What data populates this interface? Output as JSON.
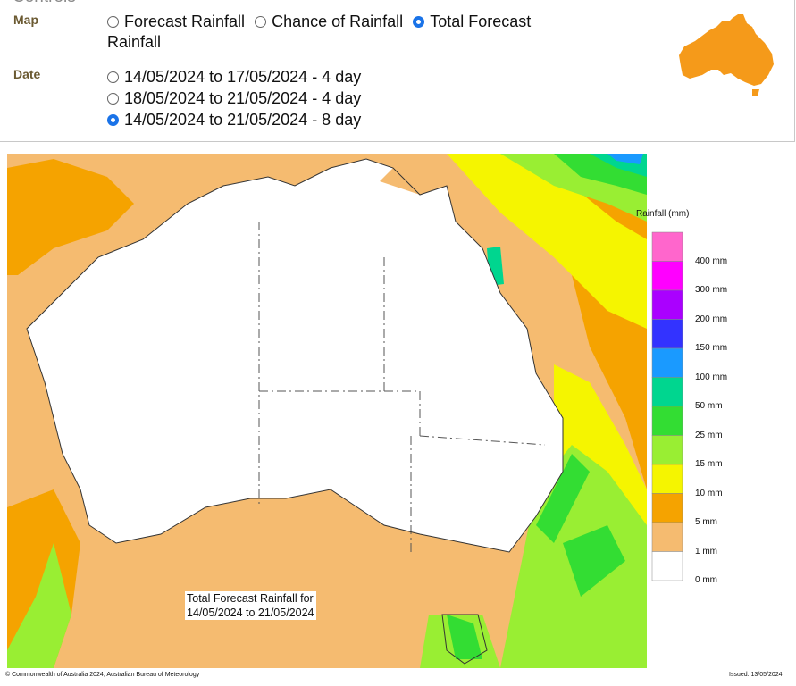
{
  "controls": {
    "heading": "Controls",
    "map_label": "Map",
    "map_options": [
      {
        "label": "Forecast Rainfall",
        "checked": false
      },
      {
        "label": "Chance of Rainfall",
        "checked": false
      },
      {
        "label": "Total Forecast",
        "checked": true
      }
    ],
    "map_option_wrap": "Rainfall",
    "date_label": "Date",
    "date_options": [
      {
        "label": "14/05/2024 to 17/05/2024 - 4 day",
        "checked": false
      },
      {
        "label": "18/05/2024 to 21/05/2024 - 4 day",
        "checked": false
      },
      {
        "label": "14/05/2024 to 21/05/2024 - 8 day",
        "checked": true
      }
    ]
  },
  "map": {
    "legend_title": "Rainfall (mm)",
    "legend": [
      {
        "label": "400 mm",
        "color": "#ff66cc"
      },
      {
        "label": "300 mm",
        "color": "#ff00ff"
      },
      {
        "label": "200 mm",
        "color": "#aa00ff"
      },
      {
        "label": "150 mm",
        "color": "#3333ff"
      },
      {
        "label": "100 mm",
        "color": "#1a9aff"
      },
      {
        "label": "50 mm",
        "color": "#00d68f"
      },
      {
        "label": "25 mm",
        "color": "#33dd33"
      },
      {
        "label": "15 mm",
        "color": "#99ee33"
      },
      {
        "label": "10 mm",
        "color": "#f5f500"
      },
      {
        "label": "5 mm",
        "color": "#f5a300"
      },
      {
        "label": "1 mm",
        "color": "#f5bb70"
      },
      {
        "label": "0 mm",
        "color": "#ffffff"
      }
    ],
    "caption_line1": "Total Forecast Rainfall for",
    "caption_line2": "14/05/2024 to 21/05/2024",
    "copyright": "© Commonwealth of Australia 2024, Australian Bureau of Meteorology",
    "issued": "Issued: 13/05/2024"
  },
  "colors": {
    "radio_selected": "#1a73e8",
    "label_brown": "#6b5a32",
    "icon_orange": "#f59a1a"
  }
}
